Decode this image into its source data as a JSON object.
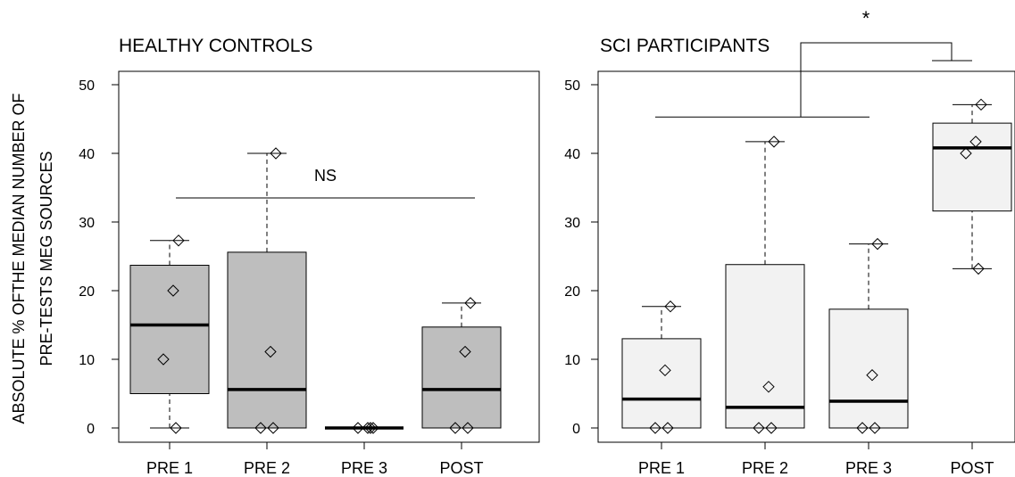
{
  "figure": {
    "ylabel_line1": "ABSOLUTE % OFTHE MEDIAN NUMBER OF",
    "ylabel_line2": "PRE-TESTS MEG SOURCES"
  },
  "chart_data": [
    {
      "type": "boxplot",
      "title": "HEALTHY CONTROLS",
      "categories": [
        "PRE 1",
        "PRE 2",
        "PRE 3",
        "POST"
      ],
      "ylim": [
        0,
        50
      ],
      "yticks": [
        0,
        10,
        20,
        30,
        40,
        50
      ],
      "box_color": "#bebebe",
      "boxes": [
        {
          "min": 0,
          "q1": 5,
          "median": 15,
          "q3": 23.7,
          "max": 27.3
        },
        {
          "min": 0,
          "q1": 0,
          "median": 5.6,
          "q3": 25.6,
          "max": 40
        },
        {
          "min": 0,
          "q1": 0,
          "median": 0,
          "q3": 0,
          "max": 0
        },
        {
          "min": 0,
          "q1": 0,
          "median": 5.6,
          "q3": 14.7,
          "max": 18.2
        }
      ],
      "points": [
        [
          27.3,
          20,
          10,
          0
        ],
        [
          40,
          11.1,
          0,
          0
        ],
        [
          0,
          0,
          0,
          0
        ],
        [
          18.2,
          11.1,
          0,
          0
        ]
      ],
      "annotation": {
        "text": "NS",
        "y": 33.5,
        "from": 0,
        "to": 3
      }
    },
    {
      "type": "boxplot",
      "title": "SCI PARTICIPANTS",
      "categories": [
        "PRE 1",
        "PRE 2",
        "PRE 3",
        "POST"
      ],
      "ylim": [
        0,
        50
      ],
      "yticks": [
        0,
        10,
        20,
        30,
        40,
        50
      ],
      "box_color": "#f2f2f2",
      "boxes": [
        {
          "min": 0,
          "q1": 0,
          "median": 4.2,
          "q3": 13,
          "max": 17.7
        },
        {
          "min": 0,
          "q1": 0,
          "median": 3,
          "q3": 23.8,
          "max": 41.7
        },
        {
          "min": 0,
          "q1": 0,
          "median": 3.9,
          "q3": 17.3,
          "max": 26.8
        },
        {
          "min": 23.2,
          "q1": 31.6,
          "median": 40.8,
          "q3": 44.4,
          "max": 47.1
        }
      ],
      "points": [
        [
          17.7,
          8.4,
          0,
          0
        ],
        [
          41.7,
          6,
          0,
          0
        ],
        [
          26.8,
          7.7,
          0,
          0
        ],
        [
          47.1,
          41.7,
          40,
          23.2
        ]
      ],
      "annotation": {
        "text": "*",
        "y": 45.3,
        "from": 0,
        "to": 2,
        "compare_to": 3
      }
    }
  ]
}
